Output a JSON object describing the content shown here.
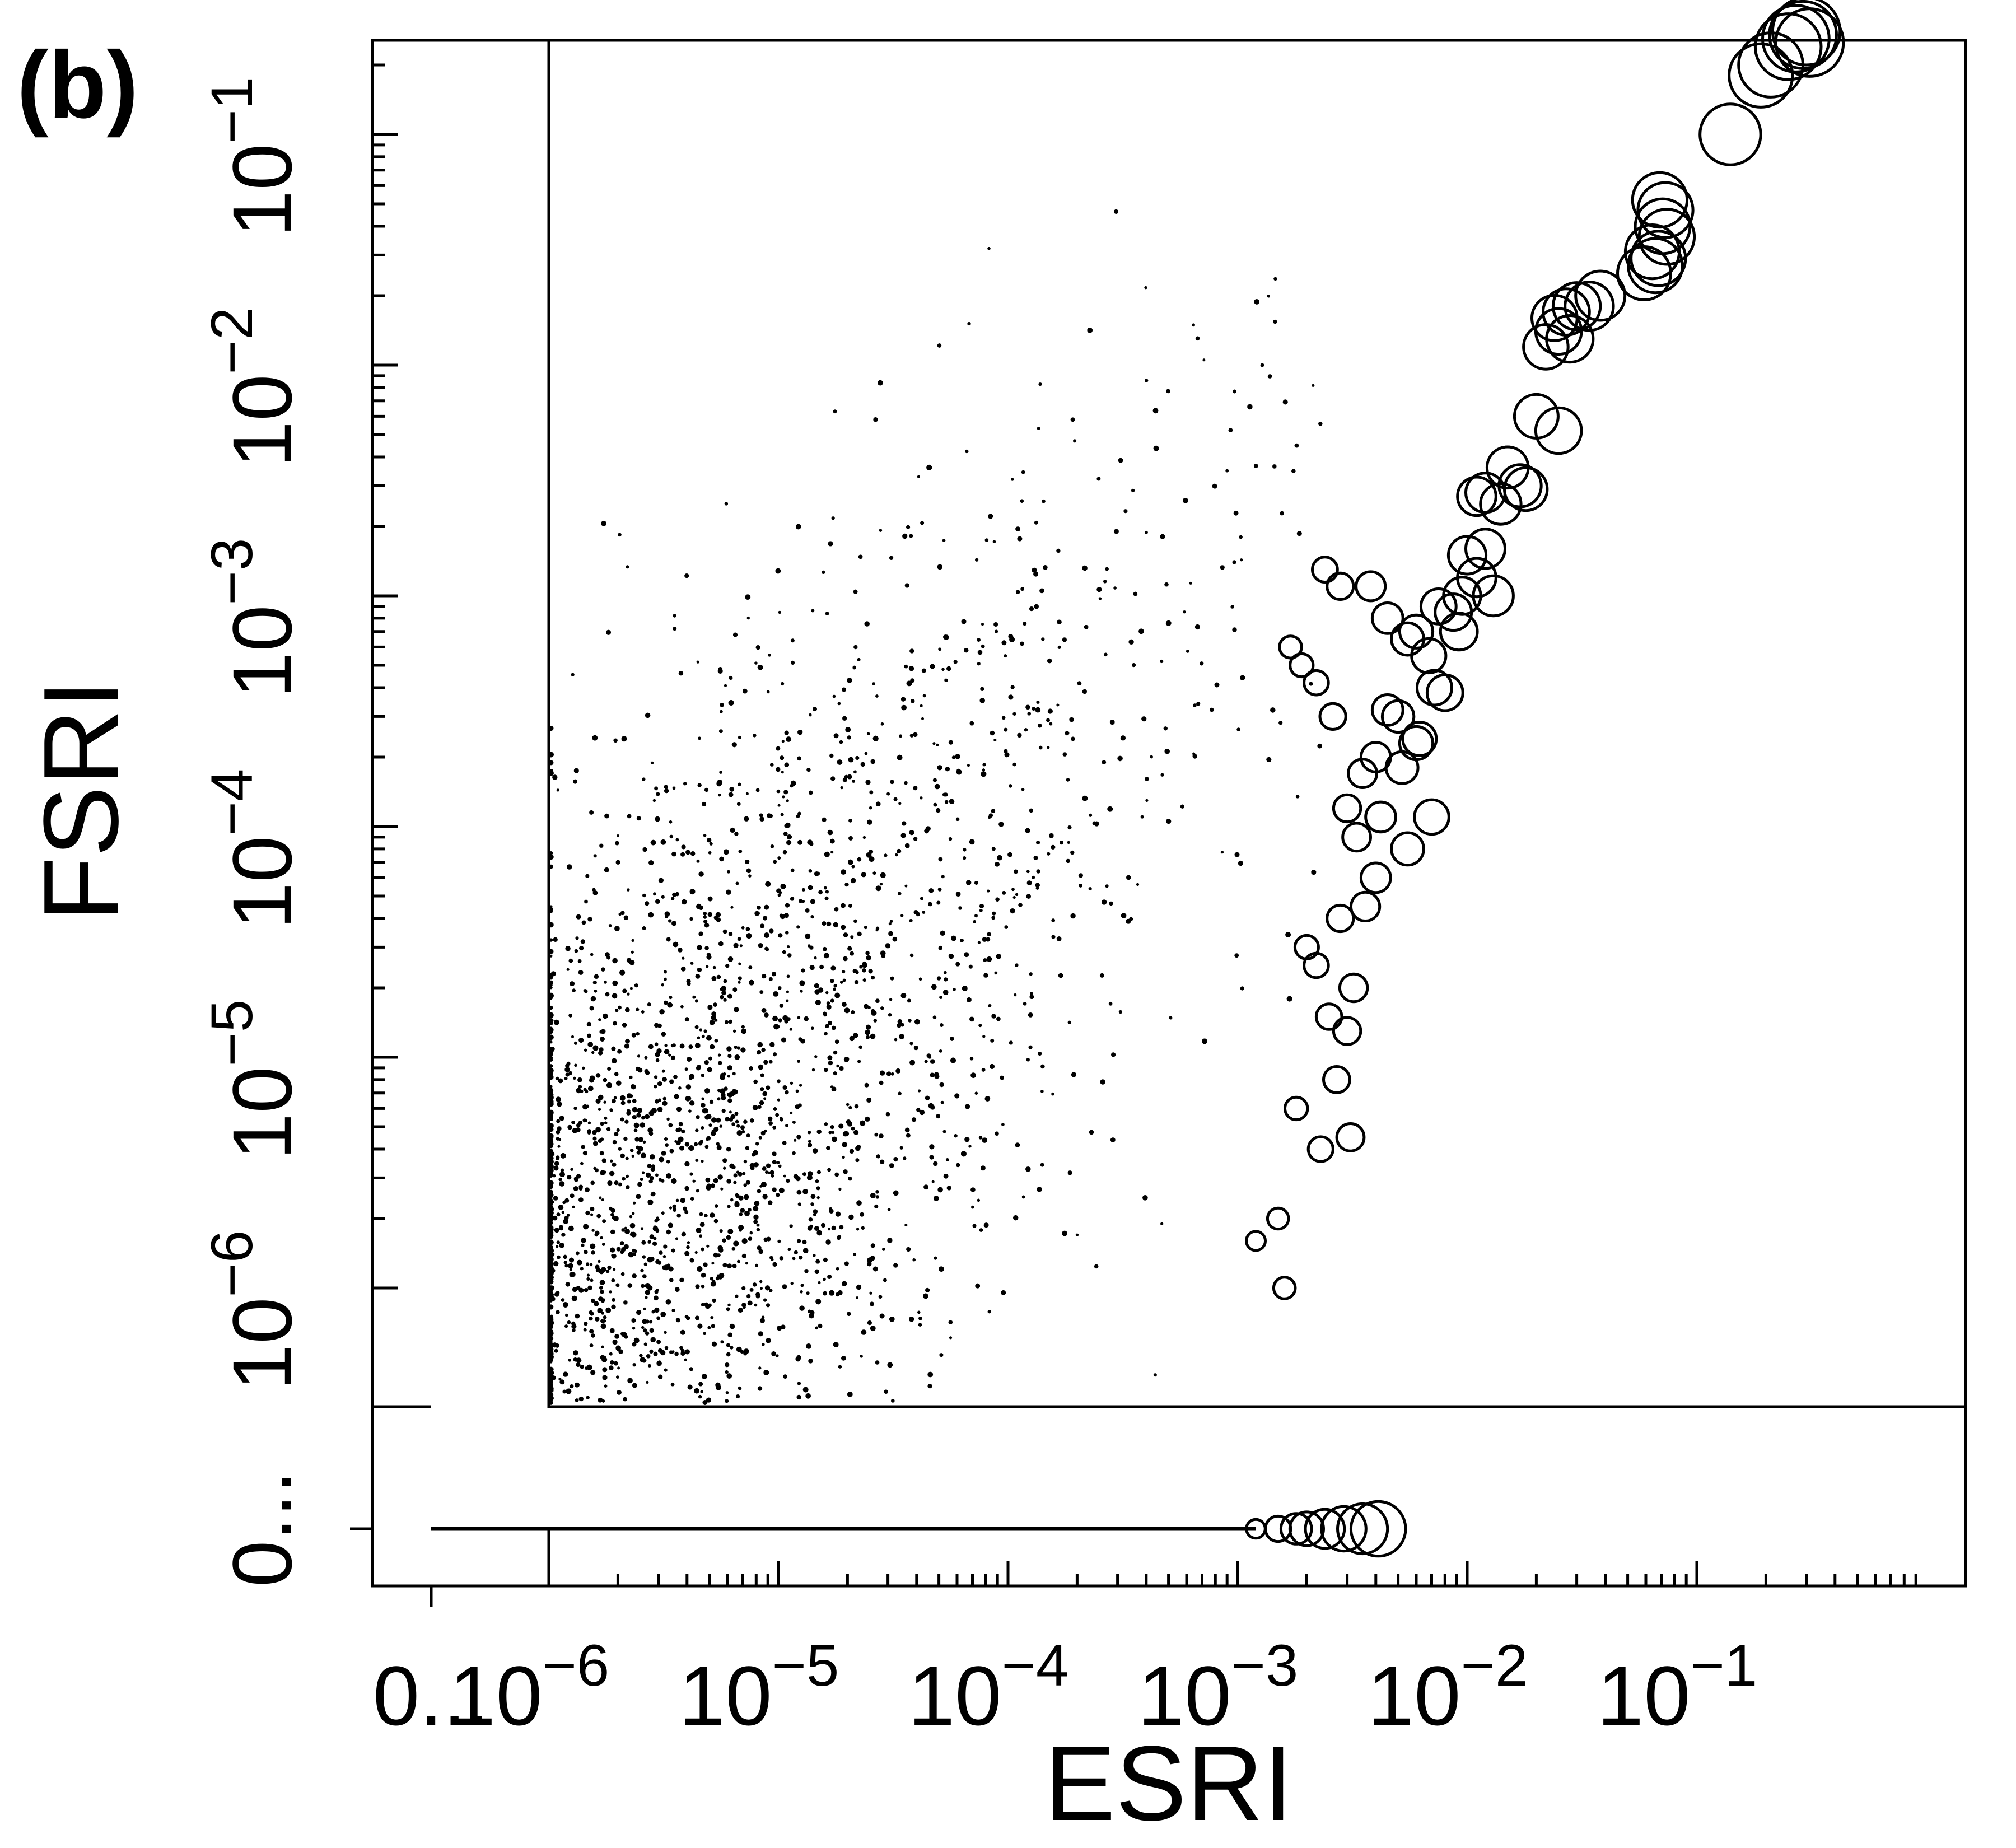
{
  "chart_data": {
    "type": "scatter",
    "panel_label": "(b)",
    "xlabel": "ESRI",
    "ylabel": "FSRI",
    "x_scale": "log",
    "y_scale": "log",
    "xlim": [
      1e-06,
      0.4
    ],
    "ylim": [
      1e-06,
      0.4
    ],
    "x_ticks": [
      {
        "base": "10",
        "exp": "−6",
        "value": 1e-06
      },
      {
        "base": "10",
        "exp": "−5",
        "value": 1e-05
      },
      {
        "base": "10",
        "exp": "−4",
        "value": 0.0001
      },
      {
        "base": "10",
        "exp": "−3",
        "value": 0.001
      },
      {
        "base": "10",
        "exp": "−2",
        "value": 0.01
      },
      {
        "base": "10",
        "exp": "−1",
        "value": 0.1
      }
    ],
    "y_ticks": [
      {
        "base": "10",
        "exp": "−6",
        "value": 1e-06
      },
      {
        "base": "10",
        "exp": "−5",
        "value": 1e-05
      },
      {
        "base": "10",
        "exp": "−4",
        "value": 0.0001
      },
      {
        "base": "10",
        "exp": "−3",
        "value": 0.001
      },
      {
        "base": "10",
        "exp": "−2",
        "value": 0.01
      },
      {
        "base": "10",
        "exp": "−1",
        "value": 0.1
      }
    ],
    "zero_label": "0...",
    "grid": false,
    "legend": "none",
    "marker": "open circle, size scales with value",
    "series": [
      {
        "points": [
          [
            0.29,
            0.27
          ],
          [
            0.27,
            0.26
          ],
          [
            0.3,
            0.28
          ],
          [
            0.25,
            0.24
          ],
          [
            0.31,
            0.25
          ],
          [
            0.19,
            0.18
          ],
          [
            0.21,
            0.2
          ],
          [
            0.14,
            0.1
          ],
          [
            0.071,
            0.04
          ],
          [
            0.074,
            0.036
          ],
          [
            0.064,
            0.031
          ],
          [
            0.068,
            0.029
          ],
          [
            0.066,
            0.027
          ],
          [
            0.059,
            0.025
          ],
          [
            0.069,
            0.052
          ],
          [
            0.073,
            0.047
          ],
          [
            0.038,
            0.02
          ],
          [
            0.034,
            0.018
          ],
          [
            0.03,
            0.018
          ],
          [
            0.027,
            0.017
          ],
          [
            0.025,
            0.014
          ],
          [
            0.028,
            0.013
          ],
          [
            0.022,
            0.012
          ],
          [
            0.024,
            0.016
          ],
          [
            0.02,
            0.006
          ],
          [
            0.025,
            0.0052
          ],
          [
            0.015,
            0.0036
          ],
          [
            0.017,
            0.003
          ],
          [
            0.018,
            0.0029
          ],
          [
            0.012,
            0.0028
          ],
          [
            0.014,
            0.0025
          ],
          [
            0.011,
            0.0027
          ],
          [
            0.012,
            0.0016
          ],
          [
            0.01,
            0.0015
          ],
          [
            0.011,
            0.0012
          ],
          [
            0.013,
            0.001
          ],
          [
            0.0095,
            0.001
          ],
          [
            0.0087,
            0.00085
          ],
          [
            0.0092,
            0.0007
          ],
          [
            0.0075,
            0.0009
          ],
          [
            0.0068,
            0.00055
          ],
          [
            0.006,
            0.0007
          ],
          [
            0.0055,
            0.00065
          ],
          [
            0.0072,
            0.0004
          ],
          [
            0.008,
            0.00038
          ],
          [
            0.005,
            0.0003
          ],
          [
            0.0045,
            0.00032
          ],
          [
            0.0062,
            0.00024
          ],
          [
            0.004,
            0.0002
          ],
          [
            0.0052,
            0.00018
          ],
          [
            0.0035,
            0.00017
          ],
          [
            0.003,
            0.00012
          ],
          [
            0.0042,
            0.00011
          ],
          [
            0.0033,
            9e-05
          ],
          [
            0.0036,
            4.5e-05
          ],
          [
            0.0028,
            4e-05
          ],
          [
            0.006,
            0.00023
          ],
          [
            0.007,
            0.00011
          ],
          [
            0.0055,
            8e-05
          ],
          [
            0.004,
            6e-05
          ],
          [
            0.0032,
            2e-05
          ],
          [
            0.0025,
            1.5e-05
          ],
          [
            0.003,
            1.3e-05
          ],
          [
            0.0027,
            8e-06
          ],
          [
            0.0031,
            4.5e-06
          ],
          [
            0.0023,
            4e-06
          ],
          [
            0.0018,
            6e-06
          ],
          [
            0.002,
            3e-05
          ],
          [
            0.0022,
            2.5e-05
          ],
          [
            0.0015,
            2e-06
          ],
          [
            0.0012,
            1.6e-06
          ],
          [
            0.0016,
            1e-06
          ],
          [
            0.0026,
            0.0003
          ],
          [
            0.0022,
            0.00042
          ],
          [
            0.0019,
            0.0005
          ],
          [
            0.0017,
            0.0006
          ],
          [
            0.0045,
            0.0008
          ],
          [
            0.0038,
            0.0011
          ],
          [
            0.0028,
            0.0011
          ],
          [
            0.0024,
            0.0013
          ]
        ]
      }
    ],
    "zero_row": {
      "x_points": [
        0.0012,
        0.0015,
        0.0018,
        0.002,
        0.0024,
        0.0029,
        0.0035,
        0.0041
      ]
    }
  }
}
